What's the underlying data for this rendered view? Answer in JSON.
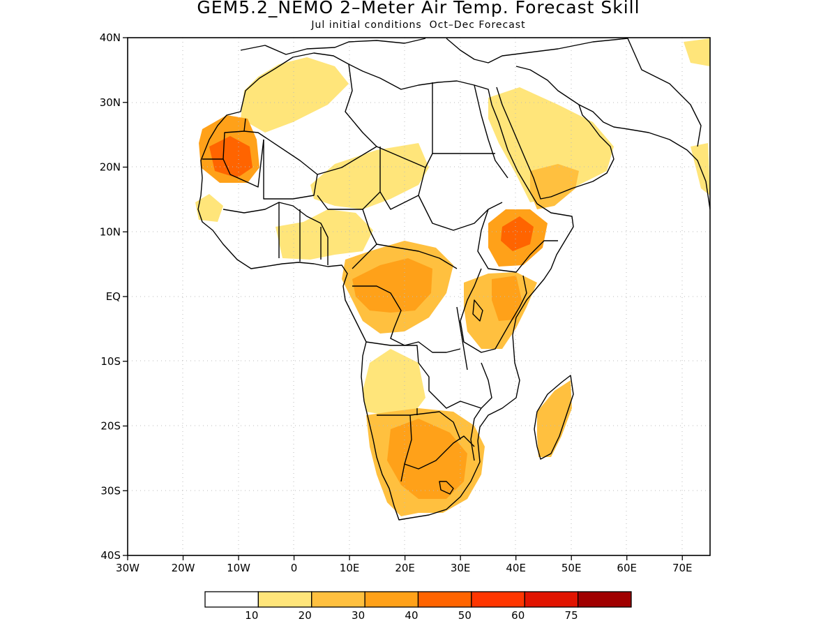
{
  "title": "GEM5.2_NEMO 2–Meter Air Temp. Forecast Skill",
  "subtitle": "Jul initial conditions  Oct–Dec Forecast",
  "map": {
    "region": "Africa",
    "lon_range": [
      -30,
      75
    ],
    "lat_range": [
      -40,
      40
    ],
    "lat_ticks": [
      {
        "value": 40,
        "label": "40N"
      },
      {
        "value": 30,
        "label": "30N"
      },
      {
        "value": 20,
        "label": "20N"
      },
      {
        "value": 10,
        "label": "10N"
      },
      {
        "value": 0,
        "label": "EQ"
      },
      {
        "value": -10,
        "label": "10S"
      },
      {
        "value": -20,
        "label": "20S"
      },
      {
        "value": -30,
        "label": "30S"
      },
      {
        "value": -40,
        "label": "40S"
      }
    ],
    "lon_ticks": [
      {
        "value": -30,
        "label": "30W"
      },
      {
        "value": -20,
        "label": "20W"
      },
      {
        "value": -10,
        "label": "10W"
      },
      {
        "value": 0,
        "label": "0"
      },
      {
        "value": 10,
        "label": "10E"
      },
      {
        "value": 20,
        "label": "20E"
      },
      {
        "value": 30,
        "label": "30E"
      },
      {
        "value": 40,
        "label": "40E"
      },
      {
        "value": 50,
        "label": "50E"
      },
      {
        "value": 60,
        "label": "60E"
      },
      {
        "value": 70,
        "label": "70E"
      }
    ],
    "grid": "dotted",
    "coastline_color": "#000000",
    "skill_regions": [
      {
        "name": "Mauritania / Western Sahara",
        "level": 3
      },
      {
        "name": "Northwest Africa",
        "level": 1
      },
      {
        "name": "Sahel",
        "level": 1
      },
      {
        "name": "Central Africa",
        "level": 2
      },
      {
        "name": "Ethiopia",
        "level": 3
      },
      {
        "name": "East Africa",
        "level": 2
      },
      {
        "name": "Arabian Peninsula",
        "level": 1
      },
      {
        "name": "Angola",
        "level": 1
      },
      {
        "name": "Southern Africa",
        "level": 2
      },
      {
        "name": "Madagascar",
        "level": 2
      }
    ]
  },
  "colorbar": {
    "colors": [
      "#ffffff",
      "#ffe57a",
      "#ffc03f",
      "#ffa119",
      "#ff6400",
      "#ff3600",
      "#e11400",
      "#a00000"
    ],
    "labels": [
      "10",
      "20",
      "30",
      "40",
      "50",
      "60",
      "75"
    ]
  }
}
